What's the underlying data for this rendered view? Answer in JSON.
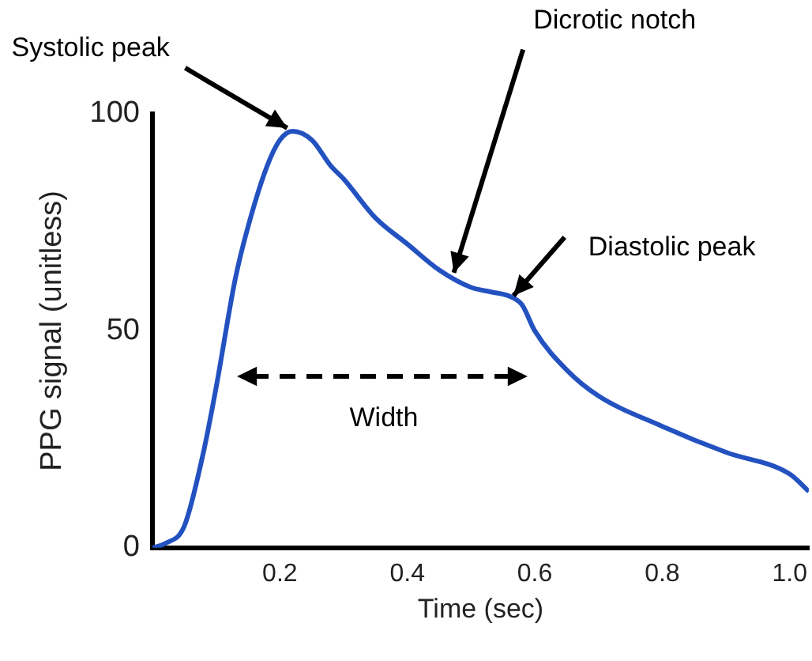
{
  "chart_data": {
    "type": "line",
    "xlabel": "Time (sec)",
    "ylabel": "PPG signal (unitless)",
    "x": [
      0,
      0.02,
      0.05,
      0.08,
      0.1,
      0.13,
      0.15,
      0.18,
      0.2,
      0.22,
      0.25,
      0.28,
      0.3,
      0.35,
      0.4,
      0.45,
      0.5,
      0.53,
      0.56,
      0.58,
      0.6,
      0.65,
      0.7,
      0.8,
      0.9,
      1.0,
      1.03
    ],
    "series": [
      {
        "color": "#2352c0",
        "values": [
          0,
          1,
          5,
          22,
          37,
          62,
          74,
          88,
          94,
          96,
          94,
          88,
          85,
          76,
          70,
          64,
          60,
          59,
          58,
          56,
          50,
          41,
          35,
          28,
          22,
          17,
          13
        ]
      }
    ],
    "xlim": [
      0,
      1.03
    ],
    "ylim": [
      0,
      100
    ],
    "xticks": [
      0.2,
      0.4,
      0.6,
      0.8,
      {
        "value": 1,
        "label": "1.0"
      }
    ],
    "yticks": [
      0,
      50,
      100
    ],
    "grid": false,
    "legend": false,
    "marker": "none",
    "line_style": "solid",
    "annotations": [
      {
        "text": "Systolic peak",
        "x": 0.22,
        "y": 96
      },
      {
        "text": "Dicrotic notch",
        "x": 0.47,
        "y": 62
      },
      {
        "text": "Diastolic peak",
        "x": 0.56,
        "y": 57
      },
      "Width"
    ]
  }
}
